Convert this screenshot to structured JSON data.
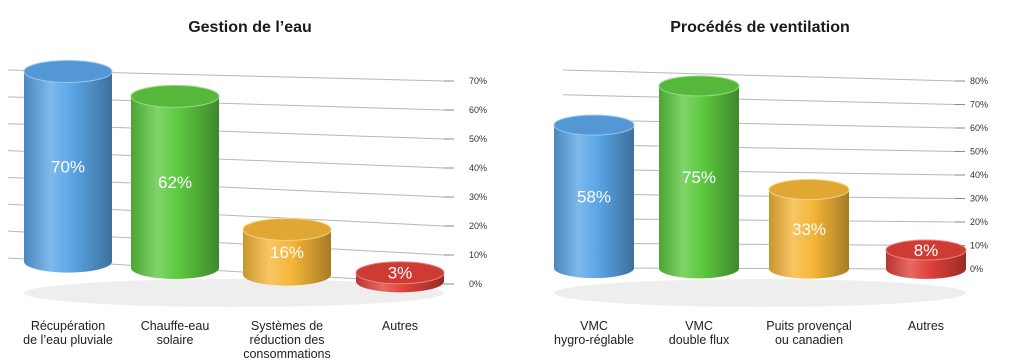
{
  "chart_data": [
    {
      "type": "bar",
      "title": "Gestion de l’eau",
      "categories": [
        [
          "Récupération",
          "de l’eau pluviale"
        ],
        [
          "Chauffe-eau",
          "solaire"
        ],
        [
          "Systèmes de",
          "réduction des",
          "consommations"
        ],
        [
          "Autres"
        ]
      ],
      "values": [
        70,
        62,
        16,
        3
      ],
      "value_labels": [
        "70%",
        "62%",
        "16%",
        "3%"
      ],
      "colors": [
        "#5aa5e6",
        "#5cc83f",
        "#f5b638",
        "#e0403a"
      ],
      "ylim": [
        0,
        70
      ],
      "ticks": [
        "0%",
        "10%",
        "20%",
        "30%",
        "40%",
        "50%",
        "60%",
        "70%"
      ],
      "grid": true
    },
    {
      "type": "bar",
      "title": "Procédés de ventilation",
      "categories": [
        [
          "VMC",
          "hygro-réglable"
        ],
        [
          "VMC",
          "double flux"
        ],
        [
          "Puits provençal",
          "ou canadien"
        ],
        [
          "Autres"
        ]
      ],
      "values": [
        58,
        75,
        33,
        8
      ],
      "value_labels": [
        "58%",
        "75%",
        "33%",
        "8%"
      ],
      "colors": [
        "#5aa5e6",
        "#5cc83f",
        "#f5b638",
        "#e0403a"
      ],
      "ylim": [
        0,
        80
      ],
      "ticks": [
        "0%",
        "10%",
        "20%",
        "30%",
        "40%",
        "50%",
        "60%",
        "70%",
        "80%"
      ],
      "grid": true
    }
  ]
}
